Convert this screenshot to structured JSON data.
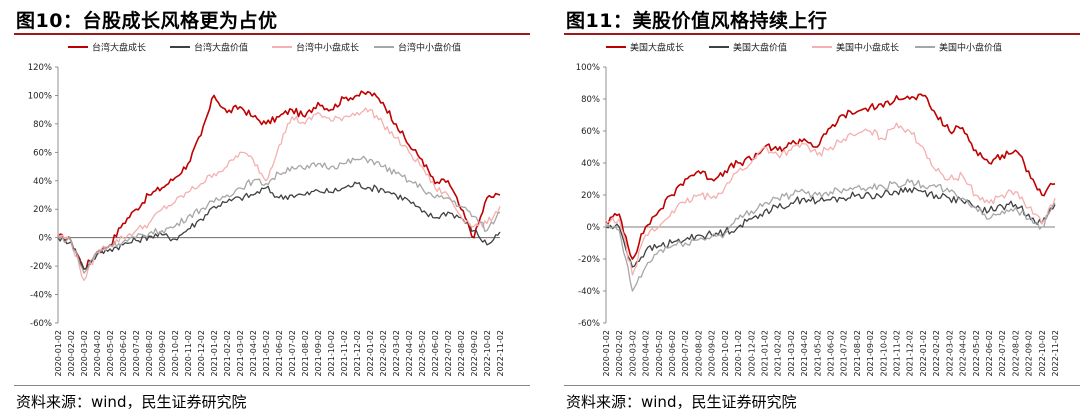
{
  "panels": [
    {
      "title": "图10：台股成长风格更为占优",
      "source": "资料来源：wind，民生证券研究院"
    },
    {
      "title": "图11：美股价值风格持续上行",
      "source": "资料来源：wind，民生证券研究院"
    }
  ],
  "chart_data": [
    {
      "type": "line",
      "x": [
        "2020-01-02",
        "2020-02-02",
        "2020-03-02",
        "2020-04-02",
        "2020-05-02",
        "2020-06-02",
        "2020-07-02",
        "2020-08-02",
        "2020-09-02",
        "2020-10-02",
        "2020-11-02",
        "2020-12-02",
        "2021-01-02",
        "2021-02-02",
        "2021-03-02",
        "2021-04-02",
        "2021-05-02",
        "2021-06-02",
        "2021-07-02",
        "2021-08-02",
        "2021-09-02",
        "2021-10-02",
        "2021-11-02",
        "2021-12-02",
        "2022-01-02",
        "2022-02-02",
        "2022-03-02",
        "2022-04-02",
        "2022-05-02",
        "2022-06-02",
        "2022-07-02",
        "2022-08-02",
        "2022-09-02",
        "2022-10-02",
        "2022-11-02"
      ],
      "yticks": [
        "120%",
        "100%",
        "80%",
        "60%",
        "40%",
        "20%",
        "0%",
        "-20%",
        "-40%",
        "-60%"
      ],
      "ylim": [
        -60,
        120
      ],
      "series": [
        {
          "name": "台湾大盘成长",
          "color": "#c00000",
          "values": [
            1,
            -2,
            -22,
            -10,
            -5,
            10,
            20,
            30,
            35,
            42,
            52,
            72,
            100,
            88,
            92,
            85,
            80,
            85,
            90,
            85,
            95,
            90,
            98,
            100,
            102,
            95,
            80,
            65,
            55,
            38,
            40,
            20,
            0,
            28,
            30
          ]
        },
        {
          "name": "台湾大盘价值",
          "color": "#404040",
          "values": [
            0,
            -3,
            -22,
            -12,
            -8,
            -5,
            -2,
            1,
            2,
            -1,
            6,
            13,
            22,
            25,
            28,
            30,
            35,
            28,
            30,
            30,
            33,
            32,
            35,
            38,
            35,
            34,
            30,
            26,
            18,
            14,
            18,
            14,
            5,
            -5,
            4
          ]
        },
        {
          "name": "台湾中小盘成长",
          "color": "#f4b0b0",
          "values": [
            2,
            -2,
            -30,
            -10,
            -5,
            0,
            5,
            10,
            20,
            25,
            32,
            38,
            45,
            50,
            60,
            55,
            40,
            65,
            85,
            80,
            88,
            82,
            85,
            88,
            90,
            80,
            70,
            60,
            50,
            35,
            30,
            15,
            8,
            10,
            22
          ]
        },
        {
          "name": "台湾中小盘价值",
          "color": "#a6a6a6",
          "values": [
            0,
            -2,
            -25,
            -10,
            -5,
            -3,
            0,
            3,
            5,
            8,
            15,
            20,
            25,
            30,
            35,
            40,
            38,
            45,
            50,
            48,
            52,
            50,
            52,
            55,
            55,
            50,
            45,
            40,
            35,
            28,
            28,
            22,
            15,
            5,
            18
          ]
        }
      ],
      "legend": "top"
    },
    {
      "type": "line",
      "x": [
        "2020-01-02",
        "2020-02-02",
        "2020-03-02",
        "2020-04-02",
        "2020-05-02",
        "2020-06-02",
        "2020-07-02",
        "2020-08-02",
        "2020-09-02",
        "2020-10-02",
        "2020-11-02",
        "2020-12-02",
        "2021-01-02",
        "2021-02-02",
        "2021-03-02",
        "2021-04-02",
        "2021-05-02",
        "2021-06-02",
        "2021-07-02",
        "2021-08-02",
        "2021-09-02",
        "2021-10-02",
        "2021-11-02",
        "2021-12-02",
        "2022-01-02",
        "2022-02-02",
        "2022-03-02",
        "2022-04-02",
        "2022-05-02",
        "2022-06-02",
        "2022-07-02",
        "2022-08-02",
        "2022-09-02",
        "2022-10-02",
        "2022-11-02"
      ],
      "yticks": [
        "100%",
        "80%",
        "60%",
        "40%",
        "20%",
        "0%",
        "-20%",
        "-40%",
        "-60%"
      ],
      "ylim": [
        -60,
        100
      ],
      "series": [
        {
          "name": "美国大盘成长",
          "color": "#c00000",
          "values": [
            3,
            8,
            -20,
            0,
            10,
            20,
            30,
            35,
            30,
            35,
            40,
            42,
            50,
            48,
            52,
            55,
            50,
            62,
            70,
            72,
            75,
            75,
            82,
            80,
            82,
            70,
            60,
            62,
            48,
            40,
            45,
            48,
            35,
            20,
            27
          ]
        },
        {
          "name": "美国大盘价值",
          "color": "#404040",
          "values": [
            0,
            0,
            -25,
            -15,
            -12,
            -10,
            -8,
            -5,
            -5,
            -3,
            0,
            5,
            10,
            12,
            15,
            18,
            16,
            17,
            18,
            20,
            20,
            20,
            22,
            24,
            22,
            20,
            18,
            16,
            12,
            10,
            13,
            14,
            8,
            2,
            14
          ]
        },
        {
          "name": "美国中小盘成长",
          "color": "#f4b0b0",
          "values": [
            2,
            5,
            -30,
            -5,
            0,
            10,
            15,
            20,
            18,
            25,
            35,
            40,
            50,
            45,
            48,
            52,
            45,
            50,
            55,
            58,
            60,
            55,
            65,
            60,
            50,
            35,
            30,
            32,
            20,
            15,
            20,
            22,
            12,
            2,
            18
          ]
        },
        {
          "name": "美国中小盘价值",
          "color": "#a6a6a6",
          "values": [
            0,
            -2,
            -40,
            -25,
            -15,
            -12,
            -10,
            -8,
            -6,
            -4,
            5,
            10,
            15,
            18,
            20,
            22,
            20,
            22,
            24,
            25,
            25,
            25,
            27,
            28,
            26,
            25,
            22,
            18,
            12,
            5,
            10,
            12,
            5,
            0,
            15
          ]
        }
      ],
      "legend": "top"
    }
  ]
}
